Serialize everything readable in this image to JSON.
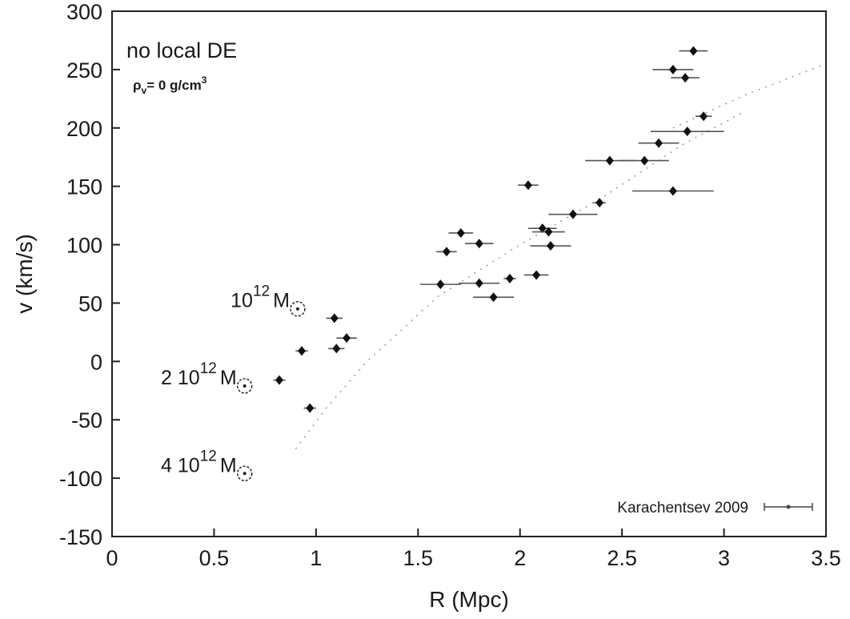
{
  "chart_data": {
    "type": "scatter",
    "xlabel": "R (Mpc)",
    "ylabel": "v (km/s)",
    "xlim": [
      0,
      3.5
    ],
    "ylim": [
      -150,
      300
    ],
    "xticks": [
      {
        "value": 0,
        "label": "0"
      },
      {
        "value": 0.5,
        "label": "0.5"
      },
      {
        "value": 1,
        "label": "1"
      },
      {
        "value": 1.5,
        "label": "1.5"
      },
      {
        "value": 2,
        "label": "2"
      },
      {
        "value": 2.5,
        "label": "2.5"
      },
      {
        "value": 3,
        "label": "3"
      },
      {
        "value": 3.5,
        "label": "3.5"
      }
    ],
    "yticks": [
      {
        "value": -150,
        "label": "-150"
      },
      {
        "value": -100,
        "label": "-100"
      },
      {
        "value": -50,
        "label": "-50"
      },
      {
        "value": 0,
        "label": "0"
      },
      {
        "value": 50,
        "label": "50"
      },
      {
        "value": 100,
        "label": "100"
      },
      {
        "value": 150,
        "label": "150"
      },
      {
        "value": 200,
        "label": "200"
      },
      {
        "value": 250,
        "label": "250"
      },
      {
        "value": 300,
        "label": "300"
      }
    ],
    "grid": false,
    "legend_position": "bottom-right",
    "annotation": {
      "title": "no local DE",
      "density_label": "ρ",
      "density_sub": "v",
      "density_value": "=  0 g/cm",
      "density_sup": "3"
    },
    "series": [
      {
        "name": "Karachentsev 2009",
        "style": "points-with-horizontal-error-bars",
        "points": [
          {
            "x": 0.82,
            "y": -16,
            "xerr": 0.03
          },
          {
            "x": 0.93,
            "y": 9,
            "xerr": 0.03
          },
          {
            "x": 0.97,
            "y": -40,
            "xerr": 0.03
          },
          {
            "x": 1.09,
            "y": 37,
            "xerr": 0.04
          },
          {
            "x": 1.1,
            "y": 11,
            "xerr": 0.04
          },
          {
            "x": 1.15,
            "y": 20,
            "xerr": 0.05
          },
          {
            "x": 1.61,
            "y": 66,
            "xerr": 0.1
          },
          {
            "x": 1.64,
            "y": 94,
            "xerr": 0.05
          },
          {
            "x": 1.71,
            "y": 110,
            "xerr": 0.06
          },
          {
            "x": 1.8,
            "y": 67,
            "xerr": 0.1
          },
          {
            "x": 1.8,
            "y": 101,
            "xerr": 0.07
          },
          {
            "x": 1.87,
            "y": 55,
            "xerr": 0.1
          },
          {
            "x": 1.95,
            "y": 71,
            "xerr": 0.03
          },
          {
            "x": 2.04,
            "y": 151,
            "xerr": 0.05
          },
          {
            "x": 2.08,
            "y": 74,
            "xerr": 0.06
          },
          {
            "x": 2.11,
            "y": 114,
            "xerr": 0.07
          },
          {
            "x": 2.14,
            "y": 111,
            "xerr": 0.08
          },
          {
            "x": 2.15,
            "y": 99,
            "xerr": 0.1
          },
          {
            "x": 2.26,
            "y": 126,
            "xerr": 0.12
          },
          {
            "x": 2.39,
            "y": 136,
            "xerr": 0.03
          },
          {
            "x": 2.44,
            "y": 172,
            "xerr": 0.12
          },
          {
            "x": 2.61,
            "y": 172,
            "xerr": 0.12
          },
          {
            "x": 2.68,
            "y": 187,
            "xerr": 0.1
          },
          {
            "x": 2.75,
            "y": 146,
            "xerr": 0.2
          },
          {
            "x": 2.75,
            "y": 250,
            "xerr": 0.1
          },
          {
            "x": 2.81,
            "y": 243,
            "xerr": 0.07
          },
          {
            "x": 2.82,
            "y": 197,
            "xerr": 0.18
          },
          {
            "x": 2.85,
            "y": 266,
            "xerr": 0.07
          },
          {
            "x": 2.9,
            "y": 210,
            "xerr": 0.04
          }
        ]
      }
    ],
    "model_curves": [
      {
        "style": "dotted",
        "points": [
          [
            0.9,
            -75
          ],
          [
            1.05,
            -40
          ],
          [
            1.25,
            0
          ],
          [
            1.6,
            56
          ],
          [
            2.0,
            100
          ],
          [
            2.4,
            140
          ],
          [
            2.8,
            186
          ],
          [
            3.1,
            214
          ]
        ]
      },
      {
        "style": "dotted",
        "points": [
          [
            2.75,
            200
          ],
          [
            3.1,
            228
          ],
          [
            3.5,
            255
          ]
        ]
      }
    ],
    "mass_markers": [
      {
        "x": 0.91,
        "y": 45,
        "label": "10",
        "sup": "12",
        "unit": "M"
      },
      {
        "x": 0.65,
        "y": -21,
        "label": "2 10",
        "sup": "12",
        "unit": "M"
      },
      {
        "x": 0.65,
        "y": -96,
        "label": "4 10",
        "sup": "12",
        "unit": "M"
      }
    ]
  }
}
